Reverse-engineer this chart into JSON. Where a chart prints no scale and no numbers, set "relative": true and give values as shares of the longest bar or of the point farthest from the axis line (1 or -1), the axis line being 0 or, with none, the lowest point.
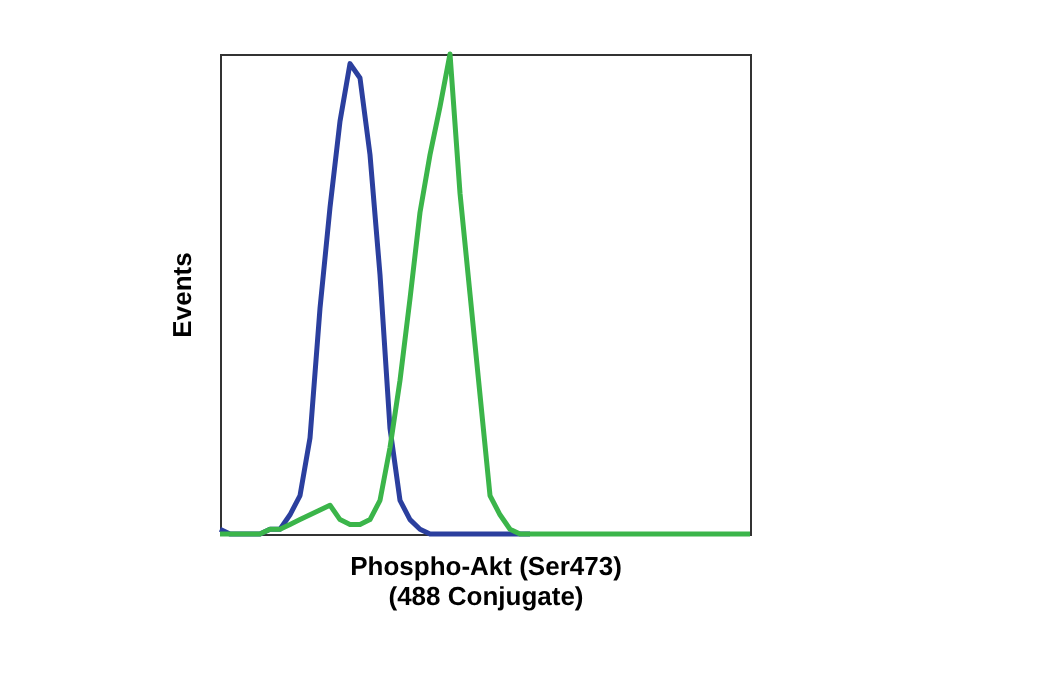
{
  "chart_data": {
    "type": "line",
    "relative": true,
    "xlabel": "Phospho-Akt (Ser473)\n(488 Conjugate)",
    "ylabel": "Events",
    "legend": false,
    "grid": false,
    "marker": "none",
    "line_style": "solid",
    "categories": [
      null,
      null,
      null,
      null,
      null,
      null,
      null,
      null,
      null,
      null,
      null,
      null,
      null,
      null,
      null,
      null,
      null,
      null,
      null,
      null,
      null,
      null,
      null,
      null,
      null,
      null,
      null,
      null,
      null,
      null,
      null,
      null,
      null,
      null,
      null,
      null,
      null,
      null,
      null,
      null,
      null,
      null,
      null,
      null,
      null,
      null,
      null,
      null,
      null,
      null,
      null,
      null,
      null,
      null
    ],
    "series": [
      {
        "color": "#2b3f9e",
        "values": [
          0.01,
          0,
          0,
          0,
          0,
          0.01,
          0.01,
          0.04,
          0.08,
          0.2,
          0.47,
          0.68,
          0.86,
          0.98,
          0.95,
          0.79,
          0.54,
          0.22,
          0.07,
          0.03,
          0.01,
          0,
          0,
          0,
          0,
          0,
          0,
          0,
          0,
          0,
          0,
          0,
          null,
          null,
          null,
          null,
          null,
          null,
          null,
          null,
          null,
          null,
          null,
          null,
          null,
          null,
          null,
          null,
          null,
          null,
          null,
          null,
          null,
          null
        ]
      },
      {
        "color": "#3bb54a",
        "values": [
          0,
          0,
          0,
          0,
          0,
          0.01,
          0.01,
          0.02,
          0.03,
          0.04,
          0.05,
          0.06,
          0.03,
          0.02,
          0.02,
          0.03,
          0.07,
          0.18,
          0.32,
          0.49,
          0.67,
          0.79,
          0.89,
          1,
          0.71,
          0.5,
          0.29,
          0.08,
          0.04,
          0.01,
          0,
          0,
          0,
          0,
          0,
          0,
          0,
          0,
          0,
          0,
          0,
          0,
          0,
          0,
          0,
          0,
          0,
          0,
          0,
          0,
          0,
          0,
          0,
          0
        ]
      }
    ]
  }
}
